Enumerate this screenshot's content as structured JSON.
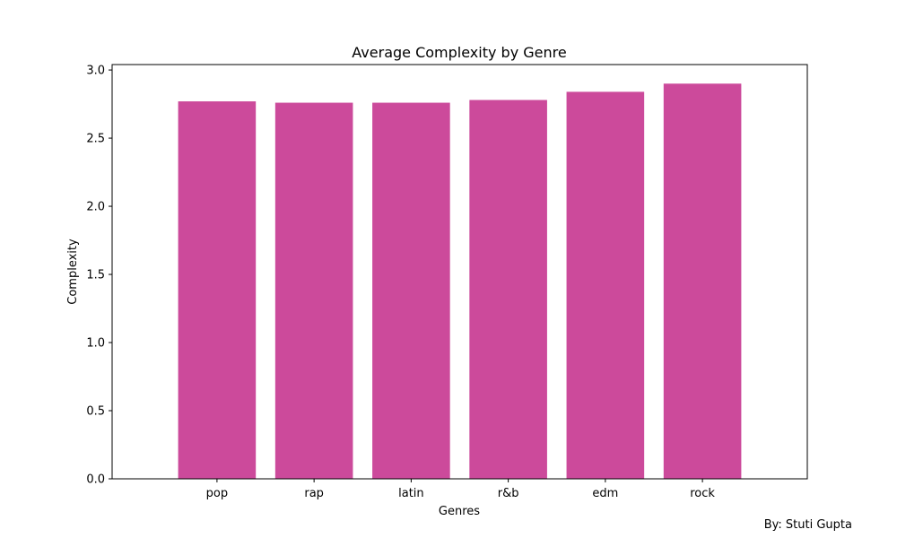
{
  "chart_data": {
    "type": "bar",
    "title": "Average Complexity by Genre",
    "xlabel": "Genres",
    "ylabel": "Complexity",
    "categories": [
      "pop",
      "rap",
      "latin",
      "r&b",
      "edm",
      "rock"
    ],
    "values": [
      2.77,
      2.76,
      2.76,
      2.78,
      2.84,
      2.9
    ],
    "ylim": [
      0,
      3.04
    ],
    "yticks": [
      "0.0",
      "0.5",
      "1.0",
      "1.5",
      "2.0",
      "2.5",
      "3.0"
    ],
    "bar_color": "#cc4a9b",
    "grid": false
  },
  "credit": "By: Stuti Gupta"
}
